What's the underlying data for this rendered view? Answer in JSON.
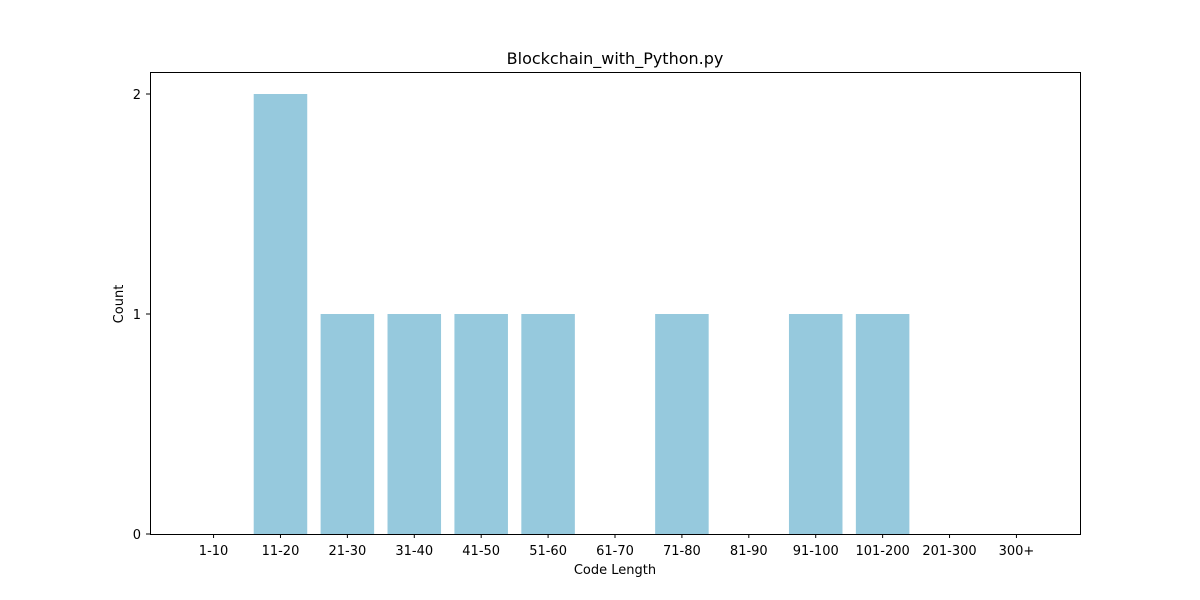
{
  "chart_data": {
    "type": "bar",
    "title": "Blockchain_with_Python.py",
    "xlabel": "Code Length",
    "ylabel": "Count",
    "categories": [
      "1-10",
      "11-20",
      "21-30",
      "31-40",
      "41-50",
      "51-60",
      "61-70",
      "71-80",
      "81-90",
      "91-100",
      "101-200",
      "201-300",
      "300+"
    ],
    "values": [
      0,
      2,
      1,
      1,
      1,
      1,
      0,
      1,
      0,
      1,
      1,
      0,
      0
    ],
    "ylim": [
      0,
      2.1
    ],
    "yticks": [
      0,
      1,
      2
    ],
    "bar_color": "#96c9dd",
    "grid": false,
    "legend": "none"
  }
}
